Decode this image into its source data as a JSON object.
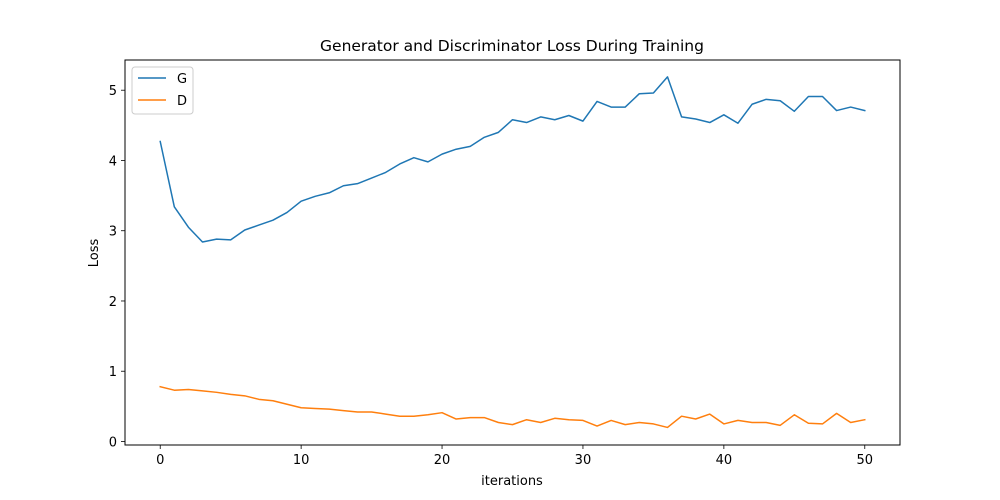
{
  "chart_data": {
    "type": "line",
    "title": "Generator and Discriminator Loss During Training",
    "xlabel": "iterations",
    "ylabel": "Loss",
    "xlim": [
      -2.5,
      52.5
    ],
    "ylim": [
      -0.05,
      5.43
    ],
    "xticks": [
      0,
      10,
      20,
      30,
      40,
      50
    ],
    "yticks": [
      0,
      1,
      2,
      3,
      4,
      5
    ],
    "grid": false,
    "legend_position": "top-left",
    "x": [
      0,
      1,
      2,
      3,
      4,
      5,
      6,
      7,
      8,
      9,
      10,
      11,
      12,
      13,
      14,
      15,
      16,
      17,
      18,
      19,
      20,
      21,
      22,
      23,
      24,
      25,
      26,
      27,
      28,
      29,
      30,
      31,
      32,
      33,
      34,
      35,
      36,
      37,
      38,
      39,
      40,
      41,
      42,
      43,
      44,
      45,
      46,
      47,
      48,
      49,
      50
    ],
    "series": [
      {
        "name": "G",
        "color": "#1f77b4",
        "values": [
          4.27,
          3.34,
          3.05,
          2.84,
          2.88,
          2.87,
          3.01,
          3.08,
          3.15,
          3.26,
          3.42,
          3.49,
          3.54,
          3.64,
          3.67,
          3.75,
          3.83,
          3.95,
          4.04,
          3.98,
          4.09,
          4.16,
          4.2,
          4.33,
          4.4,
          4.58,
          4.54,
          4.62,
          4.58,
          4.64,
          4.56,
          4.84,
          4.76,
          4.76,
          4.95,
          4.96,
          5.19,
          4.62,
          4.59,
          4.54,
          4.65,
          4.53,
          4.8,
          4.87,
          4.85,
          4.7,
          4.91,
          4.91,
          4.71,
          4.76,
          4.71
        ]
      },
      {
        "name": "D",
        "color": "#ff7f0e",
        "values": [
          0.78,
          0.73,
          0.74,
          0.72,
          0.7,
          0.67,
          0.65,
          0.6,
          0.58,
          0.53,
          0.48,
          0.47,
          0.46,
          0.44,
          0.42,
          0.42,
          0.39,
          0.36,
          0.36,
          0.38,
          0.41,
          0.32,
          0.34,
          0.34,
          0.27,
          0.24,
          0.31,
          0.27,
          0.33,
          0.31,
          0.3,
          0.22,
          0.3,
          0.24,
          0.27,
          0.25,
          0.2,
          0.36,
          0.32,
          0.39,
          0.25,
          0.3,
          0.27,
          0.27,
          0.23,
          0.38,
          0.26,
          0.25,
          0.4,
          0.27,
          0.31
        ]
      }
    ]
  }
}
